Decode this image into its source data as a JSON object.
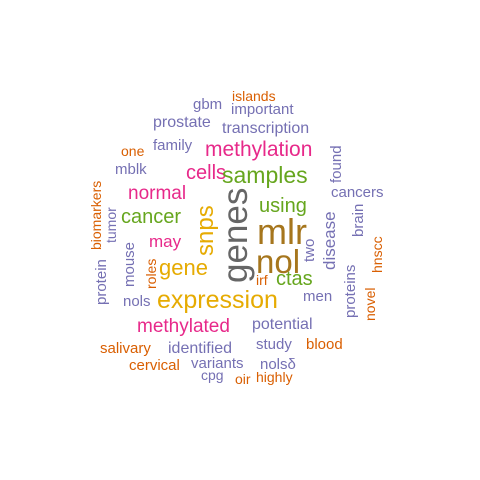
{
  "colors": {
    "purple": "#7570b3",
    "orange": "#d95f02",
    "magenta": "#e7298a",
    "green": "#66a61e",
    "gold": "#e6ab02",
    "brown": "#a6761d",
    "gray": "#666666"
  },
  "words": [
    {
      "text": "islands",
      "color": "orange"
    },
    {
      "text": "gbm",
      "color": "purple"
    },
    {
      "text": "important",
      "color": "purple"
    },
    {
      "text": "prostate",
      "color": "purple"
    },
    {
      "text": "transcription",
      "color": "purple"
    },
    {
      "text": "one",
      "color": "orange"
    },
    {
      "text": "family",
      "color": "purple"
    },
    {
      "text": "methylation",
      "color": "magenta"
    },
    {
      "text": "mblk",
      "color": "purple"
    },
    {
      "text": "cells",
      "color": "magenta"
    },
    {
      "text": "samples",
      "color": "green"
    },
    {
      "text": "found",
      "color": "purple"
    },
    {
      "text": "normal",
      "color": "magenta"
    },
    {
      "text": "cancers",
      "color": "purple"
    },
    {
      "text": "using",
      "color": "green"
    },
    {
      "text": "biomarkers",
      "color": "orange"
    },
    {
      "text": "tumor",
      "color": "purple"
    },
    {
      "text": "cancer",
      "color": "green"
    },
    {
      "text": "snps",
      "color": "gold"
    },
    {
      "text": "genes",
      "color": "gray"
    },
    {
      "text": "mlr",
      "color": "brown"
    },
    {
      "text": "brain",
      "color": "purple"
    },
    {
      "text": "disease",
      "color": "purple"
    },
    {
      "text": "may",
      "color": "magenta"
    },
    {
      "text": "two",
      "color": "purple"
    },
    {
      "text": "hnscc",
      "color": "orange"
    },
    {
      "text": "protein",
      "color": "purple"
    },
    {
      "text": "mouse",
      "color": "purple"
    },
    {
      "text": "roles",
      "color": "orange"
    },
    {
      "text": "gene",
      "color": "gold"
    },
    {
      "text": "nol",
      "color": "brown"
    },
    {
      "text": "proteins",
      "color": "purple"
    },
    {
      "text": "irf",
      "color": "orange"
    },
    {
      "text": "ctas",
      "color": "green"
    },
    {
      "text": "novel",
      "color": "orange"
    },
    {
      "text": "nols",
      "color": "purple"
    },
    {
      "text": "expression",
      "color": "gold"
    },
    {
      "text": "men",
      "color": "purple"
    },
    {
      "text": "methylated",
      "color": "magenta"
    },
    {
      "text": "potential",
      "color": "purple"
    },
    {
      "text": "salivary",
      "color": "orange"
    },
    {
      "text": "identified",
      "color": "purple"
    },
    {
      "text": "study",
      "color": "purple"
    },
    {
      "text": "blood",
      "color": "orange"
    },
    {
      "text": "cervical",
      "color": "orange"
    },
    {
      "text": "variants",
      "color": "purple"
    },
    {
      "text": "nolsδ",
      "color": "purple"
    },
    {
      "text": "cpg",
      "color": "purple"
    },
    {
      "text": "oir",
      "color": "orange"
    },
    {
      "text": "highly",
      "color": "orange"
    }
  ]
}
